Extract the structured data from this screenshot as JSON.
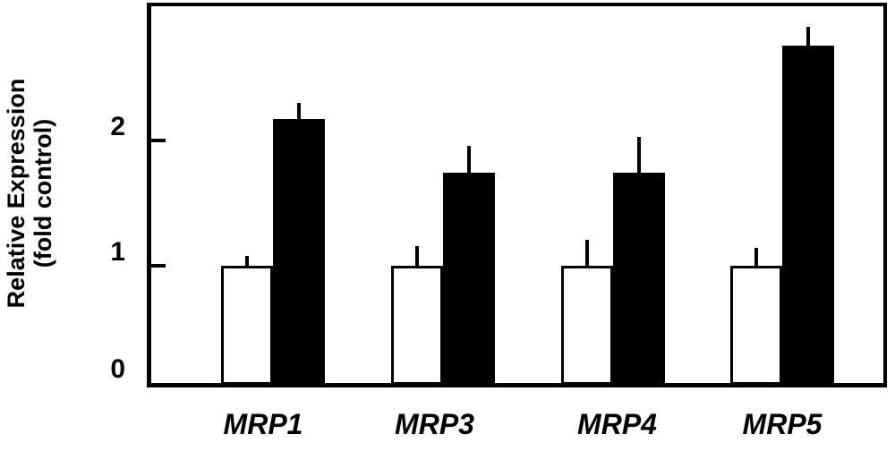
{
  "chart_data": {
    "type": "bar",
    "title": "",
    "ylabel_line1": "Relative Expression",
    "ylabel_line2": "(fold control)",
    "xlabel": "",
    "categories": [
      "MRP1",
      "MRP3",
      "MRP4",
      "MRP5"
    ],
    "series": [
      {
        "key": "open",
        "label": "open bars",
        "fill": "#ffffff",
        "stroke": "#000000",
        "values": [
          1.0,
          1.0,
          1.0,
          1.0
        ],
        "error_up": [
          0.08,
          0.16,
          0.21,
          0.14
        ]
      },
      {
        "key": "filled",
        "label": "filled bars",
        "fill": "#000000",
        "stroke": "#000000",
        "values": [
          2.17,
          1.74,
          1.74,
          2.76
        ],
        "error_up": [
          0.13,
          0.22,
          0.29,
          0.15
        ]
      }
    ],
    "yticks": [
      0,
      1,
      2
    ],
    "ylim": [
      0,
      3.05
    ],
    "grid": false,
    "legend": "none",
    "axis_color": "#000000",
    "background": "#ffffff"
  }
}
